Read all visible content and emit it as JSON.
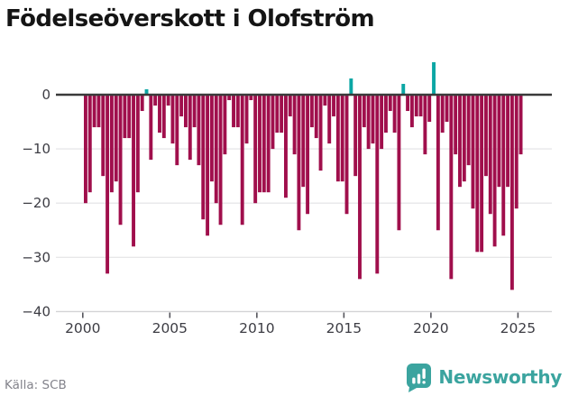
{
  "title": "Födelseöverskott i Olofström",
  "source": "Källa: SCB",
  "logo": {
    "text": "Newsworthy"
  },
  "chart_data": {
    "type": "bar",
    "x_unit": "quarter",
    "start": "2000Q1",
    "end": "2025Q1",
    "values": [
      -20,
      -18,
      -6,
      -6,
      -15,
      -33,
      -18,
      -16,
      -24,
      -8,
      -8,
      -28,
      -18,
      -3,
      1,
      -12,
      -2,
      -7,
      -8,
      -2,
      -9,
      -13,
      -4,
      -6,
      -12,
      -6,
      -13,
      -23,
      -26,
      -16,
      -20,
      -24,
      -11,
      -1,
      -6,
      -6,
      -24,
      -9,
      -1,
      -20,
      -18,
      -18,
      -18,
      -10,
      -7,
      -7,
      -19,
      -4,
      -11,
      -25,
      -17,
      -22,
      -6,
      -8,
      -14,
      -2,
      -9,
      -4,
      -16,
      -16,
      -22,
      3,
      -15,
      -34,
      -6,
      -10,
      -9,
      -33,
      -10,
      -7,
      -3,
      -7,
      -25,
      2,
      -3,
      -6,
      -4,
      -4,
      -11,
      -5,
      6,
      -25,
      -7,
      -5,
      -34,
      -11,
      -17,
      -16,
      -13,
      -21,
      -29,
      -29,
      -15,
      -22,
      -28,
      -17,
      -26,
      -17,
      -36,
      -21,
      -11
    ],
    "yticks": [
      0,
      -10,
      -20,
      -30,
      -40
    ],
    "ytick_labels": [
      "0",
      "−10",
      "−20",
      "−30",
      "−40"
    ],
    "xticks": [
      2000,
      2005,
      2010,
      2015,
      2020,
      2025
    ],
    "ylim": [
      -40,
      7
    ],
    "grid": true,
    "legend": "none",
    "negative_color": "#a00f4c",
    "positive_color": "#0ba6a4",
    "zero_line_color": "#3a3a3a",
    "grid_color": "#e7e7e9",
    "axis_line_color": "#d2d2d5",
    "tick_label_color": "#3d3d44"
  }
}
